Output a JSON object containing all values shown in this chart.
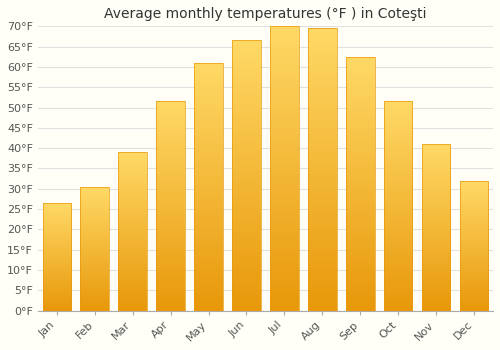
{
  "title": "Average monthly temperatures (°F ) in Coteşti",
  "months": [
    "Jan",
    "Feb",
    "Mar",
    "Apr",
    "May",
    "Jun",
    "Jul",
    "Aug",
    "Sep",
    "Oct",
    "Nov",
    "Dec"
  ],
  "values": [
    26.5,
    30.5,
    39.0,
    51.5,
    61.0,
    66.5,
    70.0,
    69.5,
    62.5,
    51.5,
    41.0,
    32.0
  ],
  "ylim": [
    0,
    70
  ],
  "yticks": [
    0,
    5,
    10,
    15,
    20,
    25,
    30,
    35,
    40,
    45,
    50,
    55,
    60,
    65,
    70
  ],
  "bar_color": "#FFC020",
  "bar_edge_color": "#E8980A",
  "background_color": "#FFFFF8",
  "grid_color": "#e0e0e0",
  "title_fontsize": 10,
  "tick_fontsize": 8,
  "bar_width": 0.75
}
